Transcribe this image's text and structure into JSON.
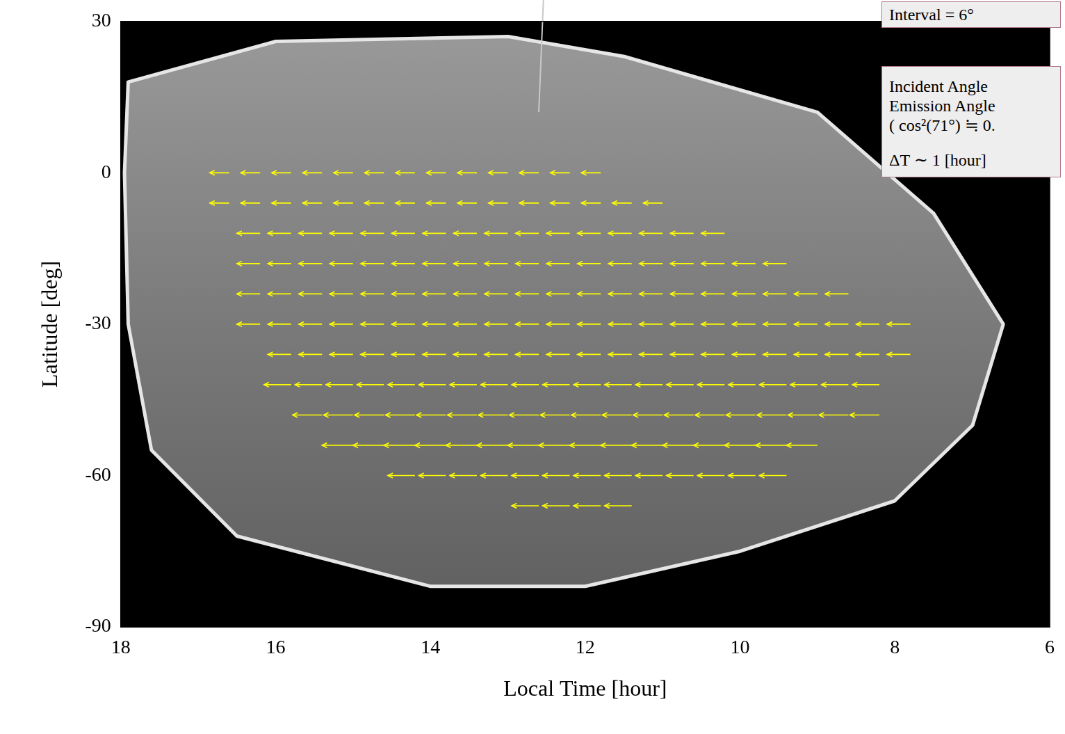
{
  "chart_data": {
    "type": "vector",
    "x_label": "Local Time [hour]",
    "y_label": "Latitude [deg]",
    "xlim": [
      18,
      6
    ],
    "xticks": [
      18,
      16,
      14,
      12,
      10,
      8,
      6
    ],
    "ylim": [
      -90,
      30
    ],
    "yticks": [
      -90,
      -60,
      -30,
      0,
      30
    ],
    "grid": false,
    "color": "#ffff00",
    "annotations": [
      [
        "Interval = 6°"
      ],
      [
        "Incident Angle",
        "Emission Angle",
        "( cos²(71°) ≒ 0."
      ],
      [
        "ΔT ∼ 1 [hour]"
      ]
    ],
    "vectors": [
      {
        "latitude": 0,
        "length": 0.25,
        "local_time": [
          11.8,
          12.2,
          12.6,
          13.0,
          13.4,
          13.8,
          14.2,
          14.6,
          15.0,
          15.4,
          15.8,
          16.2,
          16.6
        ]
      },
      {
        "latitude": -6,
        "length": 0.25,
        "local_time": [
          11.0,
          11.4,
          11.8,
          12.2,
          12.6,
          13.0,
          13.4,
          13.8,
          14.2,
          14.6,
          15.0,
          15.4,
          15.8,
          16.2,
          16.6
        ]
      },
      {
        "latitude": -12,
        "length": 0.3,
        "local_time": [
          10.2,
          10.6,
          11.0,
          11.4,
          11.8,
          12.2,
          12.6,
          13.0,
          13.4,
          13.8,
          14.2,
          14.6,
          15.0,
          15.4,
          15.8,
          16.2
        ]
      },
      {
        "latitude": -18,
        "length": 0.3,
        "local_time": [
          9.4,
          9.8,
          10.2,
          10.6,
          11.0,
          11.4,
          11.8,
          12.2,
          12.6,
          13.0,
          13.4,
          13.8,
          14.2,
          14.6,
          15.0,
          15.4,
          15.8,
          16.2
        ]
      },
      {
        "latitude": -24,
        "length": 0.3,
        "local_time": [
          8.6,
          9.0,
          9.4,
          9.8,
          10.2,
          10.6,
          11.0,
          11.4,
          11.8,
          12.2,
          12.6,
          13.0,
          13.4,
          13.8,
          14.2,
          14.6,
          15.0,
          15.4,
          15.8,
          16.2
        ]
      },
      {
        "latitude": -30,
        "length": 0.3,
        "local_time": [
          7.8,
          8.2,
          8.6,
          9.0,
          9.4,
          9.8,
          10.2,
          10.6,
          11.0,
          11.4,
          11.8,
          12.2,
          12.6,
          13.0,
          13.4,
          13.8,
          14.2,
          14.6,
          15.0,
          15.4,
          15.8,
          16.2
        ]
      },
      {
        "latitude": -36,
        "length": 0.3,
        "local_time": [
          7.8,
          8.2,
          8.6,
          9.0,
          9.4,
          9.8,
          10.2,
          10.6,
          11.0,
          11.4,
          11.8,
          12.2,
          12.6,
          13.0,
          13.4,
          13.8,
          14.2,
          14.6,
          15.0,
          15.4,
          15.8
        ]
      },
      {
        "latitude": -42,
        "length": 0.35,
        "local_time": [
          8.2,
          8.6,
          9.0,
          9.4,
          9.8,
          10.2,
          10.6,
          11.0,
          11.4,
          11.8,
          12.2,
          12.6,
          13.0,
          13.4,
          13.8,
          14.2,
          14.6,
          15.0,
          15.4,
          15.8
        ]
      },
      {
        "latitude": -48,
        "length": 0.38,
        "local_time": [
          8.2,
          8.6,
          9.0,
          9.4,
          9.8,
          10.2,
          10.6,
          11.0,
          11.4,
          11.8,
          12.2,
          12.6,
          13.0,
          13.4,
          13.8,
          14.2,
          14.6,
          15.0,
          15.4
        ]
      },
      {
        "latitude": -54,
        "length": 0.4,
        "local_time": [
          9.0,
          9.4,
          9.8,
          10.2,
          10.6,
          11.0,
          11.4,
          11.8,
          12.2,
          12.6,
          13.0,
          13.4,
          13.8,
          14.2,
          14.6,
          15.0
        ]
      },
      {
        "latitude": -60,
        "length": 0.35,
        "local_time": [
          9.4,
          9.8,
          10.2,
          10.6,
          11.0,
          11.4,
          11.8,
          12.2,
          12.6,
          13.0,
          13.4,
          13.8,
          14.2
        ]
      },
      {
        "latitude": -66,
        "length": 0.35,
        "local_time": [
          11.4,
          11.8,
          12.2,
          12.6
        ]
      }
    ]
  }
}
